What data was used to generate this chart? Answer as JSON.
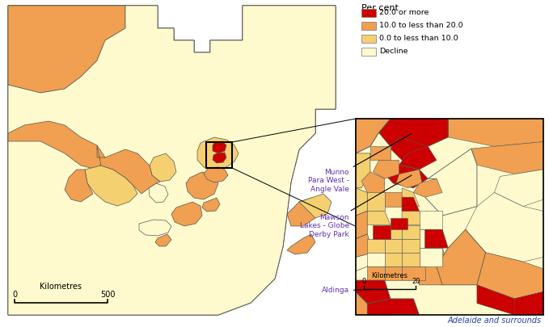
{
  "background_color": "#ffffff",
  "legend_title": "Per cent",
  "legend_items": [
    {
      "label": "20.0 or more",
      "color": "#cc0000"
    },
    {
      "label": "10.0 to less than 20.0",
      "color": "#f0a050"
    },
    {
      "label": "0.0 to less than 10.0",
      "color": "#f5d070"
    },
    {
      "label": "Decline",
      "color": "#fffacd"
    }
  ],
  "inset_label": "Adelaide and surrounds",
  "label_color": "#6030b0",
  "colors": {
    "red": "#cc0000",
    "orange": "#f0a050",
    "yellow": "#f5d070",
    "pale": "#fffacd",
    "border": "#444444",
    "white": "#ffffff"
  }
}
